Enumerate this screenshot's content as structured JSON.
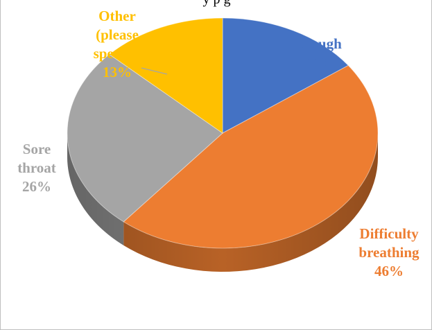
{
  "top_caption": "y p                     g",
  "chart_data": {
    "type": "pie",
    "title": "",
    "slices": [
      {
        "label": "Cough",
        "value": 15,
        "display": "15%",
        "color": "#4472c4",
        "label_color": "#4472c4"
      },
      {
        "label": "Difficulty breathing",
        "value": 46,
        "display": "46%",
        "color": "#ed7d31",
        "label_color": "#ed7d31"
      },
      {
        "label": "Sore throat",
        "value": 26,
        "display": "26%",
        "color": "#a5a5a5",
        "label_color": "#a5a5a5"
      },
      {
        "label": "Other (please specify)",
        "value": 13,
        "display": "13%",
        "color": "#ffc000",
        "label_color": "#ffc000"
      }
    ],
    "style": "3d-pie",
    "legend": "none"
  }
}
